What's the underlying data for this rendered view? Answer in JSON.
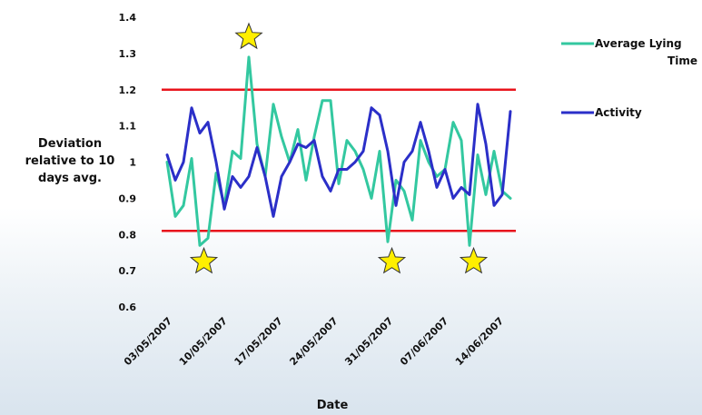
{
  "chart_data": {
    "type": "line",
    "xlabel": "Date",
    "ylabel_lines": [
      "Deviation",
      "relative to 10",
      "days avg."
    ],
    "ylim": [
      0.6,
      1.4
    ],
    "yticks": [
      "0.6",
      "0.7",
      "0.8",
      "0.9",
      "1",
      "1.1",
      "1.2",
      "1.3",
      "1.4"
    ],
    "xtick_labels": [
      "03/05/2007",
      "10/05/2007",
      "17/05/2007",
      "24/05/2007",
      "31/05/2007",
      "07/06/2007",
      "14/06/2007"
    ],
    "x_range": [
      0,
      42
    ],
    "threshold_lines": [
      1.2,
      0.81
    ],
    "threshold_color": "#e8141c",
    "series": [
      {
        "name": "Average Lying Time",
        "color": "#33c8a0",
        "values": [
          1.0,
          0.85,
          0.88,
          1.01,
          0.77,
          0.79,
          0.97,
          0.88,
          1.03,
          1.01,
          1.29,
          1.05,
          0.96,
          1.16,
          1.07,
          1.0,
          1.09,
          0.95,
          1.07,
          1.17,
          1.17,
          0.94,
          1.06,
          1.03,
          0.98,
          0.9,
          1.03,
          0.78,
          0.95,
          0.92,
          0.84,
          1.06,
          1.0,
          0.96,
          0.98,
          1.11,
          1.06,
          0.77,
          1.02,
          0.91,
          1.03,
          0.92,
          0.9
        ]
      },
      {
        "name": "Activity",
        "color": "#2b2fc8",
        "values": [
          1.02,
          0.95,
          1.0,
          1.15,
          1.08,
          1.11,
          1.0,
          0.87,
          0.96,
          0.93,
          0.96,
          1.04,
          0.96,
          0.85,
          0.96,
          1.0,
          1.05,
          1.04,
          1.06,
          0.96,
          0.92,
          0.98,
          0.98,
          1.0,
          1.03,
          1.15,
          1.13,
          1.03,
          0.88,
          1.0,
          1.03,
          1.11,
          1.03,
          0.93,
          0.98,
          0.9,
          0.93,
          0.91,
          1.16,
          1.05,
          0.88,
          0.91,
          1.14
        ]
      }
    ],
    "star_markers": [
      {
        "x": 4.5,
        "y": 0.725
      },
      {
        "x": 10.0,
        "y": 1.345
      },
      {
        "x": 27.5,
        "y": 0.725
      },
      {
        "x": 37.5,
        "y": 0.725
      }
    ],
    "star_color": "#ffef00",
    "legend_position": "right",
    "grid": false
  }
}
